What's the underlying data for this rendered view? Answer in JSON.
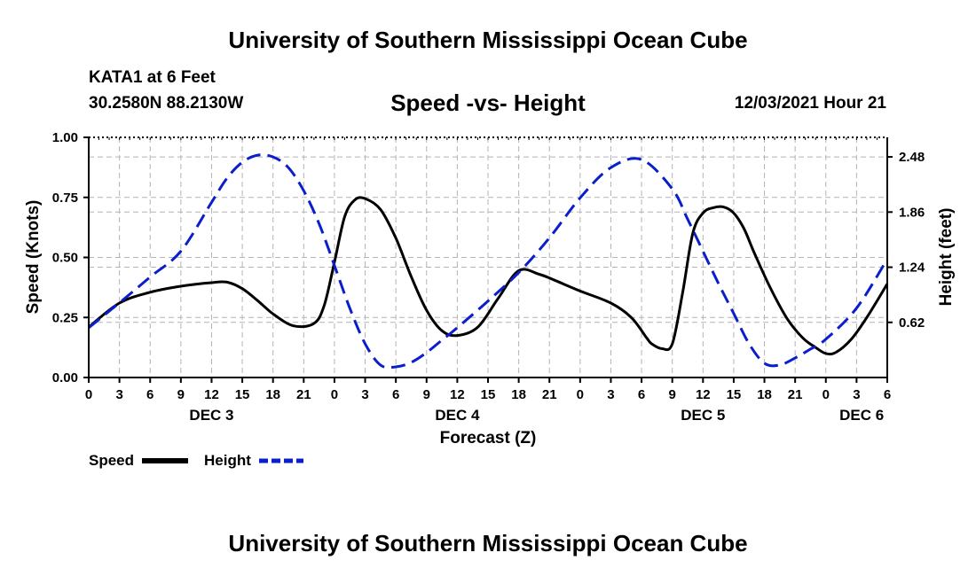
{
  "header": {
    "organization": "University of Southern Mississippi Ocean Cube",
    "station": "KATA1 at 6 Feet",
    "coordinates": "30.2580N  88.2130W",
    "plot_title": "Speed -vs- Height",
    "datetime": "12/03/2021 Hour 21"
  },
  "footer": {
    "organization": "University of Southern Mississippi Ocean Cube"
  },
  "colors": {
    "speed": "#000000",
    "height": "#0a1ecc",
    "grid": "#b4b4b4"
  },
  "chart_data": {
    "type": "line",
    "title": "Speed -vs- Height",
    "xlabel": "Forecast (Z)",
    "ylabel": "Speed (Knots)",
    "y2label": "Height (feet)",
    "xlim": [
      0,
      78
    ],
    "x_ticks": [
      0,
      3,
      6,
      9,
      12,
      15,
      18,
      21,
      24,
      27,
      30,
      33,
      36,
      39,
      42,
      45,
      48,
      51,
      54,
      57,
      60,
      63,
      66,
      69,
      72,
      75,
      78
    ],
    "x_tick_labels": [
      "0",
      "3",
      "6",
      "9",
      "12",
      "15",
      "18",
      "21",
      "0",
      "3",
      "6",
      "9",
      "12",
      "15",
      "18",
      "21",
      "0",
      "3",
      "6",
      "9",
      "12",
      "15",
      "18",
      "21",
      "0",
      "3",
      "6"
    ],
    "day_labels": [
      {
        "label": "DEC 3",
        "x": 12
      },
      {
        "label": "DEC 4",
        "x": 36
      },
      {
        "label": "DEC 5",
        "x": 60
      },
      {
        "label": "DEC 6",
        "x": 75.5
      }
    ],
    "ylim": [
      0,
      1.0
    ],
    "y_ticks": [
      0.0,
      0.25,
      0.5,
      0.75,
      1.0
    ],
    "y_tick_labels": [
      "0.00",
      "0.25",
      "0.50",
      "0.75",
      "1.00"
    ],
    "y2lim": [
      0.0,
      2.7
    ],
    "y2_ticks": [
      0.62,
      1.24,
      1.86,
      2.48
    ],
    "y2_tick_labels": [
      "0.62",
      "1.24",
      "1.86",
      "2.48"
    ],
    "legend": {
      "position": "bottom-left",
      "entries": [
        "Speed",
        "Height"
      ]
    },
    "series": [
      {
        "name": "Speed",
        "axis": "left",
        "style": "solid",
        "x": [
          0,
          3,
          6,
          9,
          12,
          13.5,
          15,
          16.5,
          18,
          20,
          22,
          23,
          24,
          25,
          26,
          27,
          28.5,
          30,
          31.5,
          33,
          34.5,
          36,
          38,
          40,
          42,
          44,
          45.5,
          48,
          51,
          53,
          54.5,
          55,
          56,
          57,
          58,
          59,
          60,
          61,
          62,
          63,
          64,
          65,
          66.5,
          68,
          69,
          70,
          71,
          72,
          73,
          74.5,
          76,
          78
        ],
        "values": [
          0.21,
          0.31,
          0.355,
          0.38,
          0.395,
          0.397,
          0.37,
          0.32,
          0.265,
          0.215,
          0.225,
          0.3,
          0.48,
          0.67,
          0.74,
          0.745,
          0.7,
          0.58,
          0.42,
          0.28,
          0.195,
          0.175,
          0.21,
          0.33,
          0.445,
          0.43,
          0.405,
          0.36,
          0.31,
          0.25,
          0.165,
          0.14,
          0.12,
          0.14,
          0.35,
          0.6,
          0.685,
          0.707,
          0.71,
          0.685,
          0.62,
          0.52,
          0.38,
          0.26,
          0.2,
          0.155,
          0.125,
          0.1,
          0.105,
          0.16,
          0.25,
          0.39
        ]
      },
      {
        "name": "Height",
        "axis": "right",
        "style": "dashed",
        "x": [
          0,
          3,
          6,
          9,
          12,
          13.5,
          15,
          16.5,
          18,
          19.5,
          21,
          22.5,
          24,
          25.5,
          27,
          28.5,
          30,
          31.5,
          33,
          34.5,
          36,
          39,
          42,
          45,
          48,
          51,
          54,
          57,
          58.5,
          60,
          61.5,
          63,
          64.5,
          66,
          67.5,
          69,
          70.5,
          72,
          75,
          78
        ],
        "values": [
          0.56,
          0.84,
          1.13,
          1.42,
          1.97,
          2.24,
          2.42,
          2.5,
          2.48,
          2.36,
          2.1,
          1.73,
          1.26,
          0.78,
          0.38,
          0.14,
          0.12,
          0.17,
          0.28,
          0.42,
          0.56,
          0.86,
          1.18,
          1.57,
          2.02,
          2.36,
          2.45,
          2.12,
          1.78,
          1.42,
          1.06,
          0.72,
          0.38,
          0.16,
          0.14,
          0.22,
          0.32,
          0.43,
          0.78,
          1.33
        ]
      }
    ]
  }
}
